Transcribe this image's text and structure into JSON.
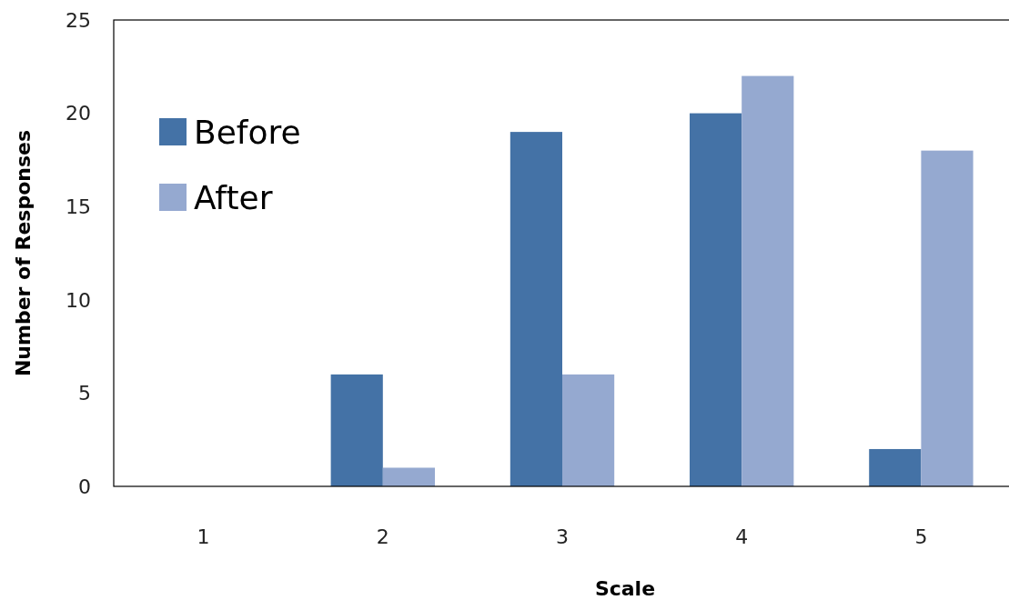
{
  "chart_data": {
    "type": "bar",
    "xlabel": "Scale",
    "ylabel": "Number of Responses",
    "categories": [
      "1",
      "2",
      "3",
      "4",
      "5"
    ],
    "series": [
      {
        "name": "Before",
        "color": "#4472a6",
        "values": [
          0,
          6,
          19,
          20,
          2
        ]
      },
      {
        "name": "After",
        "color": "#95a9d0",
        "values": [
          0,
          1,
          6,
          22,
          18
        ]
      }
    ],
    "ylim": [
      0,
      25
    ],
    "yticks": [
      0,
      5,
      10,
      15,
      20,
      25
    ],
    "legend": "top left",
    "grid": false
  }
}
